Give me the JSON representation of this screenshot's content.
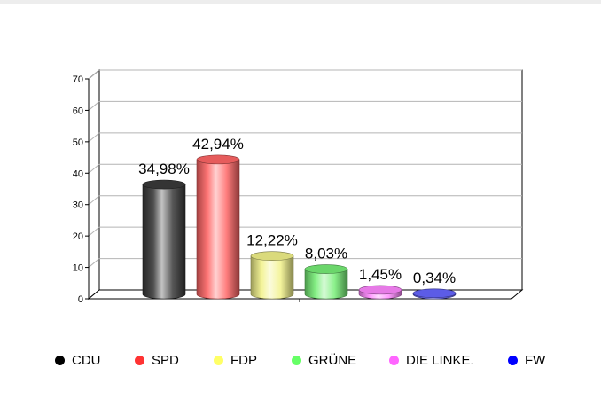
{
  "chart_data": {
    "type": "bar",
    "title": "",
    "xlabel": "",
    "ylabel": "",
    "ylim": [
      0,
      70
    ],
    "yticks": [
      "0",
      "10",
      "20",
      "30",
      "40",
      "50",
      "60",
      "70"
    ],
    "grid": true,
    "legend_position": "bottom",
    "categories": [
      "CDU",
      "SPD",
      "FDP",
      "GRÜNE",
      "DIE LINKE.",
      "FW"
    ],
    "values": [
      34.98,
      42.94,
      12.22,
      8.03,
      1.45,
      0.34
    ],
    "data_labels": [
      "34,98%",
      "42,94%",
      "12,22%",
      "8,03%",
      "1,45%",
      "0,34%"
    ],
    "bar_colors": [
      "#3a3a3a",
      "#ff6666",
      "#f2f28a",
      "#77ee77",
      "#ff88ff",
      "#6666ff"
    ],
    "legend": [
      {
        "label": "CDU",
        "color": "#000000"
      },
      {
        "label": "SPD",
        "color": "#ff3333"
      },
      {
        "label": "FDP",
        "color": "#ffff66"
      },
      {
        "label": "GRÜNE",
        "color": "#66ff66"
      },
      {
        "label": "DIE LINKE.",
        "color": "#ff66ff"
      },
      {
        "label": "FW",
        "color": "#0000ff"
      }
    ]
  }
}
